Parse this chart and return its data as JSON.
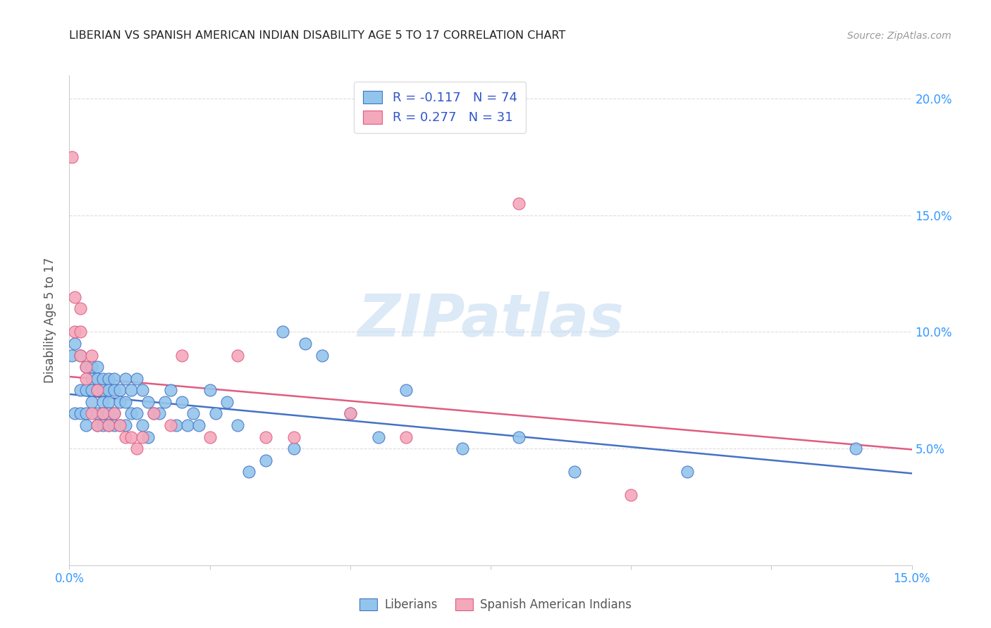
{
  "title": "LIBERIAN VS SPANISH AMERICAN INDIAN DISABILITY AGE 5 TO 17 CORRELATION CHART",
  "source": "Source: ZipAtlas.com",
  "ylabel": "Disability Age 5 to 17",
  "xlim": [
    0.0,
    0.15
  ],
  "ylim": [
    0.0,
    0.21
  ],
  "yticks": [
    0.05,
    0.1,
    0.15,
    0.2
  ],
  "ytick_labels": [
    "5.0%",
    "10.0%",
    "15.0%",
    "20.0%"
  ],
  "color_liberian": "#92C5EC",
  "color_spanish": "#F4A8BC",
  "line_color_liberian": "#4472C4",
  "line_color_spanish": "#E05C80",
  "watermark": "ZIPatlas",
  "liberian_x": [
    0.0005,
    0.001,
    0.001,
    0.002,
    0.002,
    0.002,
    0.003,
    0.003,
    0.003,
    0.003,
    0.004,
    0.004,
    0.004,
    0.004,
    0.005,
    0.005,
    0.005,
    0.005,
    0.005,
    0.006,
    0.006,
    0.006,
    0.006,
    0.006,
    0.007,
    0.007,
    0.007,
    0.007,
    0.007,
    0.008,
    0.008,
    0.008,
    0.008,
    0.009,
    0.009,
    0.009,
    0.01,
    0.01,
    0.01,
    0.011,
    0.011,
    0.012,
    0.012,
    0.013,
    0.013,
    0.014,
    0.014,
    0.015,
    0.016,
    0.017,
    0.018,
    0.019,
    0.02,
    0.021,
    0.022,
    0.023,
    0.025,
    0.026,
    0.028,
    0.03,
    0.032,
    0.035,
    0.038,
    0.04,
    0.042,
    0.045,
    0.05,
    0.055,
    0.06,
    0.07,
    0.08,
    0.09,
    0.11,
    0.14
  ],
  "liberian_y": [
    0.09,
    0.095,
    0.065,
    0.09,
    0.075,
    0.065,
    0.085,
    0.075,
    0.065,
    0.06,
    0.085,
    0.08,
    0.075,
    0.07,
    0.085,
    0.08,
    0.075,
    0.065,
    0.06,
    0.08,
    0.075,
    0.07,
    0.065,
    0.06,
    0.08,
    0.075,
    0.07,
    0.065,
    0.06,
    0.08,
    0.075,
    0.065,
    0.06,
    0.075,
    0.07,
    0.06,
    0.08,
    0.07,
    0.06,
    0.075,
    0.065,
    0.08,
    0.065,
    0.075,
    0.06,
    0.07,
    0.055,
    0.065,
    0.065,
    0.07,
    0.075,
    0.06,
    0.07,
    0.06,
    0.065,
    0.06,
    0.075,
    0.065,
    0.07,
    0.06,
    0.04,
    0.045,
    0.1,
    0.05,
    0.095,
    0.09,
    0.065,
    0.055,
    0.075,
    0.05,
    0.055,
    0.04,
    0.04,
    0.05
  ],
  "spanish_x": [
    0.0005,
    0.001,
    0.001,
    0.002,
    0.002,
    0.002,
    0.003,
    0.003,
    0.004,
    0.004,
    0.005,
    0.005,
    0.006,
    0.007,
    0.008,
    0.009,
    0.01,
    0.011,
    0.012,
    0.013,
    0.015,
    0.018,
    0.02,
    0.025,
    0.03,
    0.035,
    0.04,
    0.05,
    0.06,
    0.08,
    0.1
  ],
  "spanish_y": [
    0.175,
    0.115,
    0.1,
    0.11,
    0.1,
    0.09,
    0.085,
    0.08,
    0.09,
    0.065,
    0.075,
    0.06,
    0.065,
    0.06,
    0.065,
    0.06,
    0.055,
    0.055,
    0.05,
    0.055,
    0.065,
    0.06,
    0.09,
    0.055,
    0.09,
    0.055,
    0.055,
    0.065,
    0.055,
    0.155,
    0.03
  ]
}
